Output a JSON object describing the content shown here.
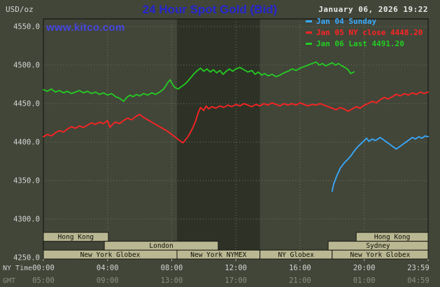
{
  "header": {
    "unit_label": "USD/oz",
    "title": "24 Hour Spot Gold (Bid)",
    "datetime": "January 06, 2026 19:22",
    "watermark": "www.kitco.com"
  },
  "legend": [
    {
      "label": "Jan 04 Sunday",
      "color": "#38aaff"
    },
    {
      "label": "Jan 05 NY close 4448.20",
      "color": "#ff2323"
    },
    {
      "label": "Jan 06 Last 4491.20",
      "color": "#23cd23"
    }
  ],
  "axes": {
    "ny_time_label": "NY Time",
    "gmt_label": "GMT",
    "y_ticks": [
      "4550.0",
      "4500.0",
      "4450.0",
      "4400.0",
      "4350.0",
      "4300.0",
      "4250.0"
    ],
    "x_ticks_ny": [
      "00:00",
      "04:00",
      "08:00",
      "12:00",
      "16:00",
      "20:00",
      "23:59"
    ],
    "x_ticks_gmt": [
      "05:00",
      "09:00",
      "13:00",
      "17:00",
      "21:00",
      "01:00",
      "04:59"
    ],
    "x_tick_hours": [
      0,
      4,
      8,
      12,
      16,
      20,
      23.983
    ]
  },
  "chart_data": {
    "type": "line",
    "title": "24 Hour Spot Gold (Bid)",
    "ylabel": "USD/oz",
    "xlabel": "NY Time",
    "ylim": [
      4250,
      4550
    ],
    "xlim_hours": [
      0,
      23.983
    ],
    "grid": true,
    "legend_position": "top-right",
    "background": "#424639",
    "shaded_band_hours": [
      8.33,
      13.5
    ],
    "series": [
      {
        "id": "jan04",
        "name": "Jan 04 Sunday",
        "color": "#38aaff",
        "points": [
          [
            18,
            4336
          ],
          [
            18.05,
            4341
          ],
          [
            18.1,
            4346
          ],
          [
            18.2,
            4351
          ],
          [
            18.3,
            4357
          ],
          [
            18.4,
            4361
          ],
          [
            18.5,
            4366
          ],
          [
            18.65,
            4370
          ],
          [
            18.8,
            4374
          ],
          [
            19,
            4378
          ],
          [
            19.2,
            4383
          ],
          [
            19.4,
            4389
          ],
          [
            19.6,
            4394
          ],
          [
            19.8,
            4398
          ],
          [
            20,
            4402
          ],
          [
            20.15,
            4405
          ],
          [
            20.3,
            4401
          ],
          [
            20.5,
            4404
          ],
          [
            20.7,
            4402
          ],
          [
            21,
            4406
          ],
          [
            21.2,
            4403
          ],
          [
            21.4,
            4400
          ],
          [
            21.6,
            4397
          ],
          [
            21.8,
            4394
          ],
          [
            22,
            4391
          ],
          [
            22.2,
            4394
          ],
          [
            22.4,
            4397
          ],
          [
            22.6,
            4400
          ],
          [
            22.8,
            4403
          ],
          [
            23,
            4406
          ],
          [
            23.2,
            4404
          ],
          [
            23.4,
            4407
          ],
          [
            23.6,
            4405
          ],
          [
            23.8,
            4408
          ],
          [
            23.983,
            4407
          ]
        ]
      },
      {
        "id": "jan05",
        "name": "Jan 05 NY close 4448.20",
        "color": "#ff2323",
        "points": [
          [
            0,
            4407
          ],
          [
            0.25,
            4410
          ],
          [
            0.5,
            4408
          ],
          [
            0.75,
            4412
          ],
          [
            1,
            4415
          ],
          [
            1.25,
            4413
          ],
          [
            1.5,
            4417
          ],
          [
            1.75,
            4420
          ],
          [
            2,
            4418
          ],
          [
            2.25,
            4421
          ],
          [
            2.5,
            4419
          ],
          [
            2.75,
            4422
          ],
          [
            3,
            4425
          ],
          [
            3.25,
            4423
          ],
          [
            3.5,
            4426
          ],
          [
            3.75,
            4424
          ],
          [
            4,
            4428
          ],
          [
            4.15,
            4419
          ],
          [
            4.3,
            4423
          ],
          [
            4.5,
            4426
          ],
          [
            4.75,
            4424
          ],
          [
            5,
            4428
          ],
          [
            5.25,
            4431
          ],
          [
            5.5,
            4429
          ],
          [
            5.75,
            4433
          ],
          [
            6,
            4436
          ],
          [
            6.25,
            4432
          ],
          [
            6.5,
            4429
          ],
          [
            6.75,
            4426
          ],
          [
            7,
            4423
          ],
          [
            7.25,
            4420
          ],
          [
            7.5,
            4417
          ],
          [
            7.75,
            4414
          ],
          [
            8,
            4410
          ],
          [
            8.25,
            4406
          ],
          [
            8.5,
            4402
          ],
          [
            8.7,
            4399
          ],
          [
            8.9,
            4404
          ],
          [
            9.1,
            4410
          ],
          [
            9.3,
            4418
          ],
          [
            9.5,
            4428
          ],
          [
            9.65,
            4438
          ],
          [
            9.8,
            4445
          ],
          [
            10,
            4441
          ],
          [
            10.15,
            4447
          ],
          [
            10.3,
            4443
          ],
          [
            10.5,
            4446
          ],
          [
            10.75,
            4444
          ],
          [
            11,
            4447
          ],
          [
            11.25,
            4445
          ],
          [
            11.5,
            4448
          ],
          [
            11.75,
            4446
          ],
          [
            12,
            4449
          ],
          [
            12.25,
            4447
          ],
          [
            12.5,
            4450
          ],
          [
            12.75,
            4448
          ],
          [
            13,
            4446
          ],
          [
            13.25,
            4449
          ],
          [
            13.5,
            4447
          ],
          [
            13.75,
            4450
          ],
          [
            14,
            4448
          ],
          [
            14.25,
            4451
          ],
          [
            14.5,
            4449
          ],
          [
            14.75,
            4447
          ],
          [
            15,
            4450
          ],
          [
            15.25,
            4448
          ],
          [
            15.5,
            4450
          ],
          [
            15.75,
            4448
          ],
          [
            16,
            4451
          ],
          [
            16.25,
            4449
          ],
          [
            16.5,
            4447
          ],
          [
            16.75,
            4449
          ],
          [
            17,
            4448
          ],
          [
            17.25,
            4450
          ],
          [
            17.5,
            4448
          ],
          [
            17.75,
            4446
          ],
          [
            18,
            4444
          ],
          [
            18.25,
            4442
          ],
          [
            18.5,
            4445
          ],
          [
            18.75,
            4443
          ],
          [
            19,
            4440
          ],
          [
            19.25,
            4443
          ],
          [
            19.5,
            4446
          ],
          [
            19.75,
            4444
          ],
          [
            20,
            4448
          ],
          [
            20.25,
            4450
          ],
          [
            20.5,
            4453
          ],
          [
            20.75,
            4451
          ],
          [
            21,
            4455
          ],
          [
            21.25,
            4458
          ],
          [
            21.5,
            4456
          ],
          [
            21.75,
            4459
          ],
          [
            22,
            4462
          ],
          [
            22.25,
            4460
          ],
          [
            22.5,
            4463
          ],
          [
            22.75,
            4461
          ],
          [
            23,
            4464
          ],
          [
            23.25,
            4462
          ],
          [
            23.5,
            4465
          ],
          [
            23.75,
            4463
          ],
          [
            23.983,
            4465
          ]
        ]
      },
      {
        "id": "jan06",
        "name": "Jan 06 Last 4491.20",
        "color": "#23cd23",
        "points": [
          [
            0,
            4468
          ],
          [
            0.25,
            4466
          ],
          [
            0.5,
            4469
          ],
          [
            0.75,
            4465
          ],
          [
            1,
            4467
          ],
          [
            1.25,
            4464
          ],
          [
            1.5,
            4466
          ],
          [
            1.75,
            4463
          ],
          [
            2,
            4465
          ],
          [
            2.25,
            4467
          ],
          [
            2.5,
            4464
          ],
          [
            2.75,
            4466
          ],
          [
            3,
            4463
          ],
          [
            3.25,
            4465
          ],
          [
            3.5,
            4462
          ],
          [
            3.75,
            4464
          ],
          [
            4,
            4461
          ],
          [
            4.25,
            4463
          ],
          [
            4.5,
            4459
          ],
          [
            4.75,
            4457
          ],
          [
            5,
            4453
          ],
          [
            5.2,
            4458
          ],
          [
            5.4,
            4461
          ],
          [
            5.6,
            4459
          ],
          [
            5.8,
            4462
          ],
          [
            6,
            4460
          ],
          [
            6.25,
            4463
          ],
          [
            6.5,
            4461
          ],
          [
            6.75,
            4464
          ],
          [
            7,
            4462
          ],
          [
            7.25,
            4465
          ],
          [
            7.5,
            4469
          ],
          [
            7.75,
            4477
          ],
          [
            7.9,
            4481
          ],
          [
            8.05,
            4475
          ],
          [
            8.2,
            4471
          ],
          [
            8.4,
            4469
          ],
          [
            8.6,
            4472
          ],
          [
            8.8,
            4475
          ],
          [
            9,
            4479
          ],
          [
            9.2,
            4484
          ],
          [
            9.4,
            4489
          ],
          [
            9.6,
            4493
          ],
          [
            9.8,
            4496
          ],
          [
            10,
            4492
          ],
          [
            10.2,
            4495
          ],
          [
            10.4,
            4491
          ],
          [
            10.6,
            4494
          ],
          [
            10.8,
            4490
          ],
          [
            11,
            4493
          ],
          [
            11.2,
            4488
          ],
          [
            11.4,
            4492
          ],
          [
            11.6,
            4495
          ],
          [
            11.8,
            4492
          ],
          [
            12,
            4495
          ],
          [
            12.25,
            4497
          ],
          [
            12.5,
            4494
          ],
          [
            12.75,
            4491
          ],
          [
            13,
            4493
          ],
          [
            13.2,
            4488
          ],
          [
            13.4,
            4491
          ],
          [
            13.6,
            4487
          ],
          [
            13.8,
            4489
          ],
          [
            14,
            4486
          ],
          [
            14.25,
            4488
          ],
          [
            14.5,
            4485
          ],
          [
            14.75,
            4487
          ],
          [
            15,
            4490
          ],
          [
            15.25,
            4492
          ],
          [
            15.5,
            4495
          ],
          [
            15.75,
            4493
          ],
          [
            16,
            4496
          ],
          [
            16.25,
            4498
          ],
          [
            16.5,
            4500
          ],
          [
            16.75,
            4502
          ],
          [
            17,
            4504
          ],
          [
            17.2,
            4500
          ],
          [
            17.4,
            4502
          ],
          [
            17.6,
            4499
          ],
          [
            17.8,
            4501
          ],
          [
            18,
            4503
          ],
          [
            18.2,
            4500
          ],
          [
            18.4,
            4502
          ],
          [
            18.6,
            4499
          ],
          [
            18.8,
            4497
          ],
          [
            19,
            4494
          ],
          [
            19.15,
            4489
          ],
          [
            19.37,
            4491.2
          ]
        ]
      }
    ],
    "sessions": [
      {
        "label": "Hong Kong",
        "row": 0,
        "start": 0,
        "end": 4.05
      },
      {
        "label": "Hong Kong",
        "row": 0,
        "start": 19.5,
        "end": 23.983
      },
      {
        "label": "London",
        "row": 1,
        "start": 3.8,
        "end": 10.9
      },
      {
        "label": "Sydney",
        "row": 1,
        "start": 17.75,
        "end": 23.983
      },
      {
        "label": "New York Globex",
        "row": 2,
        "start": 0,
        "end": 8.33
      },
      {
        "label": "New York NYMEX",
        "row": 2,
        "start": 8.33,
        "end": 13.5
      },
      {
        "label": "NY Globex",
        "row": 2,
        "start": 13.5,
        "end": 18.0
      },
      {
        "label": "New York Globex",
        "row": 2,
        "start": 18.0,
        "end": 23.983
      }
    ]
  }
}
